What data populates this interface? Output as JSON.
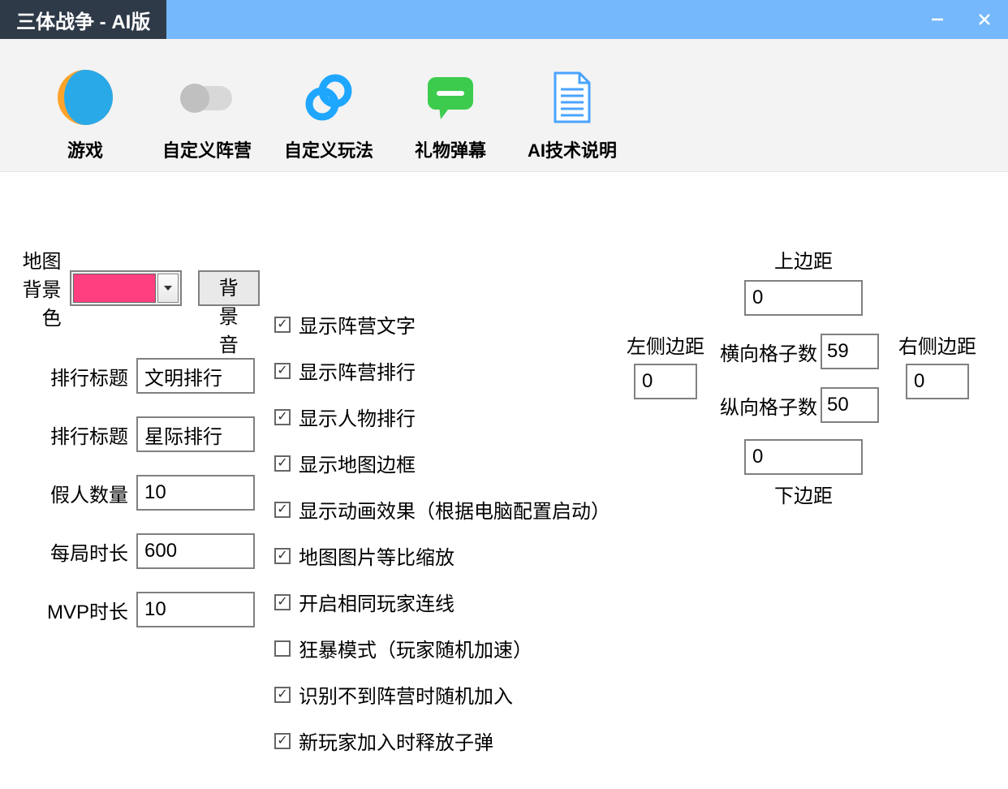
{
  "window": {
    "title": "三体战争 - AI版",
    "accent_color": "#75b8fb",
    "title_bg": "#2f3a48"
  },
  "toolbar": {
    "items": [
      {
        "label": "游戏",
        "icon": "game"
      },
      {
        "label": "自定义阵营",
        "icon": "toggle"
      },
      {
        "label": "自定义玩法",
        "icon": "link"
      },
      {
        "label": "礼物弹幕",
        "icon": "chat"
      },
      {
        "label": "AI技术说明",
        "icon": "doc"
      }
    ]
  },
  "form": {
    "map_bg_label": "地图背景色",
    "map_bg_color": "#ff3f7f",
    "bgm_button": "背景音乐",
    "rank_title1_label": "排行标题",
    "rank_title1_value": "文明排行",
    "rank_title2_label": "排行标题",
    "rank_title2_value": "星际排行",
    "fake_count_label": "假人数量",
    "fake_count_value": "10",
    "round_time_label": "每局时长",
    "round_time_value": "600",
    "mvp_time_label": "MVP时长",
    "mvp_time_value": "10"
  },
  "checks": [
    {
      "label": "显示阵营文字",
      "checked": true
    },
    {
      "label": "显示阵营排行",
      "checked": true
    },
    {
      "label": "显示人物排行",
      "checked": true
    },
    {
      "label": "显示地图边框",
      "checked": true
    },
    {
      "label": "显示动画效果（根据电脑配置启动）",
      "checked": true
    },
    {
      "label": "地图图片等比缩放",
      "checked": true
    },
    {
      "label": "开启相同玩家连线",
      "checked": true
    },
    {
      "label": "狂暴模式（玩家随机加速）",
      "checked": false
    },
    {
      "label": "识别不到阵营时随机加入",
      "checked": true
    },
    {
      "label": "新玩家加入时释放子弹",
      "checked": true
    }
  ],
  "margins": {
    "top_label": "上边距",
    "top_value": "0",
    "left_label": "左侧边距",
    "left_value": "0",
    "right_label": "右侧边距",
    "right_value": "0",
    "bottom_label": "下边距",
    "bottom_value": "0",
    "cols_label": "横向格子数",
    "cols_value": "59",
    "rows_label": "纵向格子数",
    "rows_value": "50"
  }
}
